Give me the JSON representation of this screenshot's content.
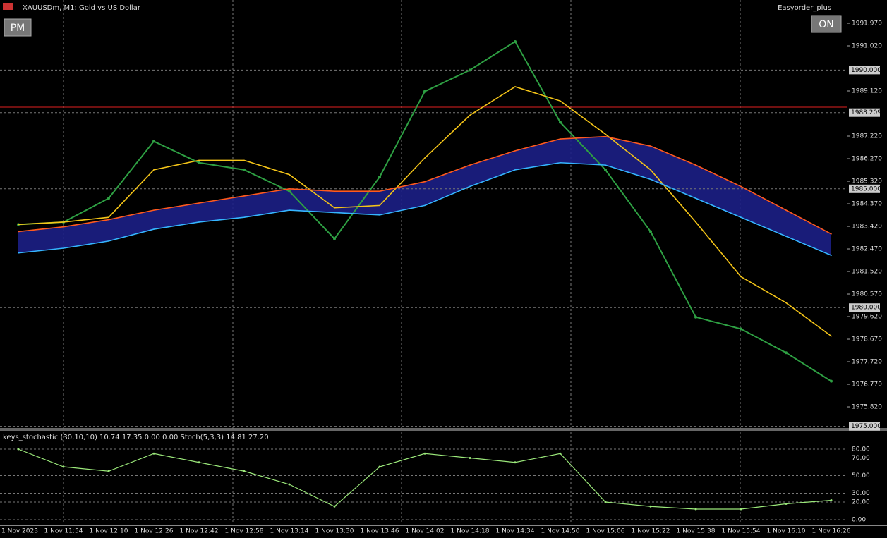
{
  "header": {
    "symbol": "XAUUSDm, M1:  Gold vs US Dollar",
    "expert": "Easyorder_plus"
  },
  "buttons": {
    "left": "PM",
    "right": "ON"
  },
  "chart_data": {
    "type": "line",
    "categories": [
      "1 Nov 2023",
      "1 Nov 11:54",
      "1 Nov 12:10",
      "1 Nov 12:26",
      "1 Nov 12:42",
      "1 Nov 12:58",
      "1 Nov 13:14",
      "1 Nov 13:30",
      "1 Nov 13:46",
      "1 Nov 14:02",
      "1 Nov 14:18",
      "1 Nov 14:34",
      "1 Nov 14:50",
      "1 Nov 15:06",
      "1 Nov 15:22",
      "1 Nov 15:38",
      "1 Nov 15:54",
      "1 Nov 16:10",
      "1 Nov 16:26"
    ],
    "series": [
      {
        "color": "#2ea043",
        "values": [
          1983.5,
          1983.6,
          1984.6,
          1987.0,
          1986.1,
          1985.8,
          1984.9,
          1982.9,
          1985.5,
          1989.1,
          1990.0,
          1991.2,
          1987.8,
          1985.8,
          1983.2,
          1979.6,
          1979.1,
          1978.1,
          1976.9
        ]
      },
      {
        "color": "#f5c518",
        "values": [
          1983.5,
          1983.6,
          1983.8,
          1985.8,
          1986.2,
          1986.2,
          1985.6,
          1984.2,
          1984.3,
          1986.3,
          1988.1,
          1989.3,
          1988.7,
          1987.3,
          1985.8,
          1983.6,
          1981.3,
          1980.2,
          1978.8
        ]
      },
      {
        "color": "#ff5a1e",
        "values": [
          1983.2,
          1983.4,
          1983.7,
          1984.1,
          1984.4,
          1984.7,
          1985.0,
          1984.9,
          1984.9,
          1985.3,
          1986.0,
          1986.6,
          1987.1,
          1987.2,
          1986.8,
          1986.0,
          1985.1,
          1984.1,
          1983.1
        ]
      },
      {
        "color": "#35b5ff",
        "values": [
          1982.3,
          1982.5,
          1982.8,
          1983.3,
          1983.6,
          1983.8,
          1984.1,
          1984.0,
          1983.9,
          1984.3,
          1985.1,
          1985.8,
          1986.1,
          1986.0,
          1985.4,
          1984.6,
          1983.8,
          1983.0,
          1982.2
        ]
      }
    ],
    "ylim": [
      1974.93,
      1992.95
    ],
    "yticks": [
      {
        "value": 1991.97,
        "label": "1991.970"
      },
      {
        "value": 1991.02,
        "label": "1991.020"
      },
      {
        "value": 1989.12,
        "label": "1989.120"
      },
      {
        "value": 1987.22,
        "label": "1987.220"
      },
      {
        "value": 1986.27,
        "label": "1986.270"
      },
      {
        "value": 1985.32,
        "label": "1985.320"
      },
      {
        "value": 1984.37,
        "label": "1984.370"
      },
      {
        "value": 1983.42,
        "label": "1983.420"
      },
      {
        "value": 1982.47,
        "label": "1982.470"
      },
      {
        "value": 1981.52,
        "label": "1981.520"
      },
      {
        "value": 1980.57,
        "label": "1980.570"
      },
      {
        "value": 1979.62,
        "label": "1979.620"
      },
      {
        "value": 1978.67,
        "label": "1978.670"
      },
      {
        "value": 1977.72,
        "label": "1977.720"
      },
      {
        "value": 1976.77,
        "label": "1976.770"
      },
      {
        "value": 1975.82,
        "label": "1975.820"
      }
    ],
    "marked_levels": [
      {
        "value": 1990,
        "label": "1990.000"
      },
      1988.209,
      {
        "value": 1985,
        "label": "1985.000"
      },
      {
        "value": 1980,
        "label": "1980.000"
      },
      {
        "value": 1975,
        "label": "1975.000"
      }
    ]
  },
  "indicator": {
    "label": "keys_stochastic (30,10,10) 10.74 17.35 0.00 0.00 Stoch(5,3,3) 14.81 27.20",
    "color": "#9be87a",
    "values": [
      80,
      60,
      55,
      75,
      65,
      55,
      40,
      15,
      60,
      75,
      70,
      65,
      75,
      20,
      15,
      12,
      12,
      18,
      22
    ],
    "ylim": [
      -6.4,
      100
    ],
    "yticks": [
      {
        "value": 80,
        "label": "80.00"
      },
      {
        "value": 70,
        "label": "70.00"
      },
      {
        "value": 50,
        "label": "50.00"
      },
      {
        "value": 30,
        "label": "30.00"
      },
      {
        "value": 20,
        "label": "20.00"
      },
      {
        "value": 0,
        "label": "0.00"
      }
    ]
  }
}
